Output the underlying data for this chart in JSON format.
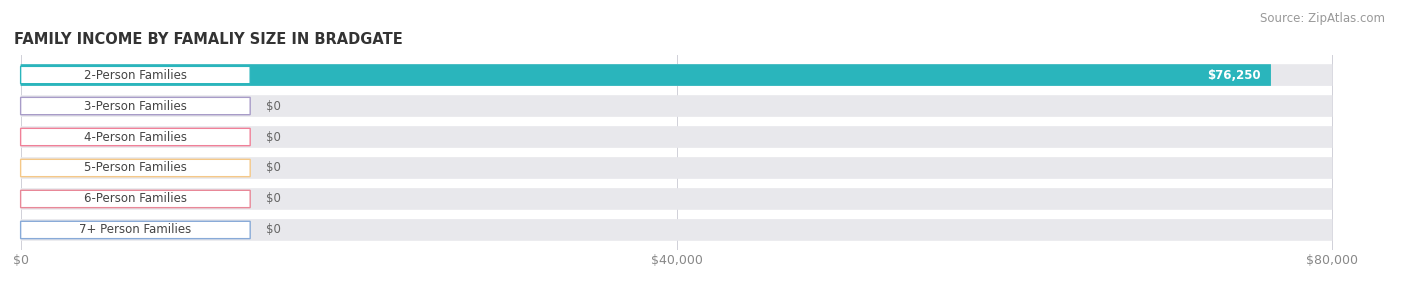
{
  "title": "FAMILY INCOME BY FAMALIY SIZE IN BRADGATE",
  "source": "Source: ZipAtlas.com",
  "categories": [
    "2-Person Families",
    "3-Person Families",
    "4-Person Families",
    "5-Person Families",
    "6-Person Families",
    "7+ Person Families"
  ],
  "values": [
    76250,
    0,
    0,
    0,
    0,
    0
  ],
  "bar_colors": [
    "#2ab5bc",
    "#a89cc8",
    "#f08098",
    "#f5c888",
    "#e88898",
    "#88aad8"
  ],
  "max_value": 80000,
  "x_ticks": [
    0,
    40000,
    80000
  ],
  "x_tick_labels": [
    "$0",
    "$40,000",
    "$80,000"
  ],
  "background_color": "#ffffff",
  "bar_bg_color": "#e8e8ec",
  "value_label_first": "$76,250",
  "value_label_others": "$0",
  "title_fontsize": 10.5,
  "source_fontsize": 8.5,
  "label_fontsize": 8.5,
  "tick_fontsize": 9
}
